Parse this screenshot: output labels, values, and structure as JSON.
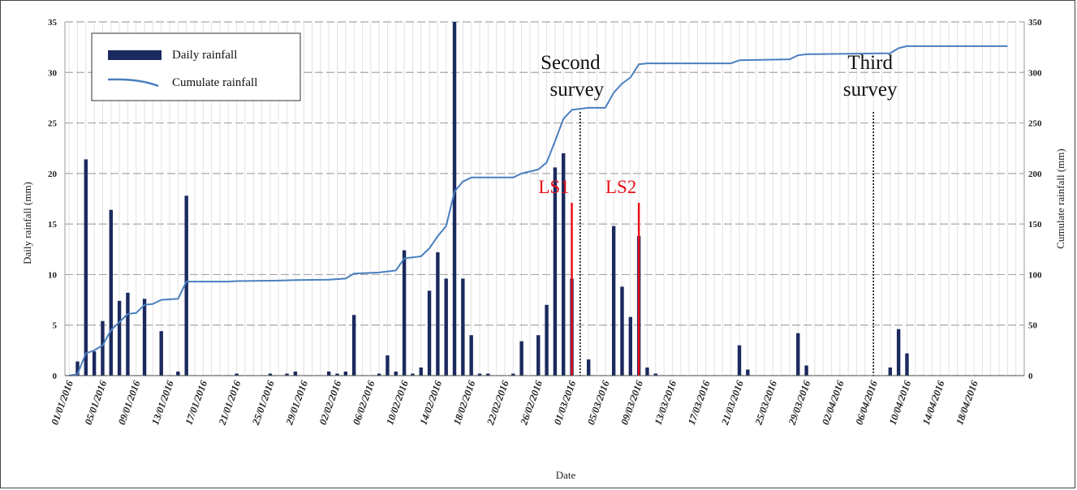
{
  "chart_data": {
    "type": "bar+line",
    "xlabel": "Date",
    "ylabel_left": "Daily rainfall (mm)",
    "ylabel_right": "Cumulate rainfall (mm)",
    "ylim_left": [
      0,
      35
    ],
    "ylim_right": [
      0,
      350
    ],
    "yticks_left": [
      "0",
      "5",
      "10",
      "15",
      "20",
      "25",
      "30",
      "35"
    ],
    "yticks_right": [
      "0",
      "50",
      "100",
      "150",
      "200",
      "250",
      "300",
      "350"
    ],
    "start_date": "2016-01-01",
    "end_date": "2016-04-22",
    "x_tick_labels": [
      "01/01/2016",
      "05/01/2016",
      "09/01/2016",
      "13/01/2016",
      "17/01/2016",
      "21/01/2016",
      "25/01/2016",
      "29/01/2016",
      "02/02/2016",
      "06/02/2016",
      "10/02/2016",
      "14/02/2016",
      "18/02/2016",
      "22/02/2016",
      "26/02/2016",
      "01/03/2016",
      "05/03/2016",
      "09/03/2016",
      "13/03/2016",
      "17/03/2016",
      "21/03/2016",
      "25/03/2016",
      "29/03/2016",
      "02/04/2016",
      "06/04/2016",
      "10/04/2016",
      "14/04/2016",
      "18/04/2016"
    ],
    "grid": true,
    "legend_position": "top-left",
    "series": [
      {
        "name": "Daily rainfall",
        "type": "bar",
        "color": "#1b2a5e",
        "points": [
          [
            "2016-01-02",
            1.4
          ],
          [
            "2016-01-03",
            21.4
          ],
          [
            "2016-01-04",
            2.4
          ],
          [
            "2016-01-05",
            5.4
          ],
          [
            "2016-01-06",
            16.4
          ],
          [
            "2016-01-07",
            7.4
          ],
          [
            "2016-01-08",
            8.2
          ],
          [
            "2016-01-10",
            7.6
          ],
          [
            "2016-01-12",
            4.4
          ],
          [
            "2016-01-14",
            0.4
          ],
          [
            "2016-01-15",
            17.8
          ],
          [
            "2016-01-21",
            0.2
          ],
          [
            "2016-01-25",
            0.2
          ],
          [
            "2016-01-27",
            0.2
          ],
          [
            "2016-01-28",
            0.4
          ],
          [
            "2016-02-01",
            0.4
          ],
          [
            "2016-02-02",
            0.2
          ],
          [
            "2016-02-03",
            0.4
          ],
          [
            "2016-02-04",
            6.0
          ],
          [
            "2016-02-07",
            0.2
          ],
          [
            "2016-02-08",
            2.0
          ],
          [
            "2016-02-09",
            0.4
          ],
          [
            "2016-02-10",
            12.4
          ],
          [
            "2016-02-11",
            0.2
          ],
          [
            "2016-02-12",
            0.8
          ],
          [
            "2016-02-13",
            8.4
          ],
          [
            "2016-02-14",
            12.2
          ],
          [
            "2016-02-15",
            9.6
          ],
          [
            "2016-02-16",
            35.0
          ],
          [
            "2016-02-17",
            9.6
          ],
          [
            "2016-02-18",
            4.0
          ],
          [
            "2016-02-19",
            0.2
          ],
          [
            "2016-02-20",
            0.2
          ],
          [
            "2016-02-23",
            0.2
          ],
          [
            "2016-02-24",
            3.4
          ],
          [
            "2016-02-26",
            4.0
          ],
          [
            "2016-02-27",
            7.0
          ],
          [
            "2016-02-28",
            20.6
          ],
          [
            "2016-02-29",
            22.0
          ],
          [
            "2016-03-01",
            9.6
          ],
          [
            "2016-03-03",
            1.6
          ],
          [
            "2016-03-06",
            14.8
          ],
          [
            "2016-03-07",
            8.8
          ],
          [
            "2016-03-08",
            5.8
          ],
          [
            "2016-03-09",
            13.8
          ],
          [
            "2016-03-10",
            0.8
          ],
          [
            "2016-03-11",
            0.2
          ],
          [
            "2016-03-21",
            3.0
          ],
          [
            "2016-03-22",
            0.6
          ],
          [
            "2016-03-28",
            4.2
          ],
          [
            "2016-03-29",
            1.0
          ],
          [
            "2016-04-08",
            0.8
          ],
          [
            "2016-04-09",
            4.6
          ],
          [
            "2016-04-10",
            2.2
          ]
        ]
      },
      {
        "name": "Cumulate rainfall",
        "type": "line",
        "color": "#4a7fbf",
        "points": [
          [
            "2016-01-01",
            0
          ],
          [
            "2016-01-02",
            1.5
          ],
          [
            "2016-01-03",
            22
          ],
          [
            "2016-01-04",
            25
          ],
          [
            "2016-01-05",
            30
          ],
          [
            "2016-01-06",
            45
          ],
          [
            "2016-01-07",
            53
          ],
          [
            "2016-01-08",
            61
          ],
          [
            "2016-01-09",
            62
          ],
          [
            "2016-01-10",
            70
          ],
          [
            "2016-01-11",
            71
          ],
          [
            "2016-01-12",
            75
          ],
          [
            "2016-01-14",
            76
          ],
          [
            "2016-01-15",
            93
          ],
          [
            "2016-01-20",
            93
          ],
          [
            "2016-01-21",
            93.5
          ],
          [
            "2016-01-26",
            94
          ],
          [
            "2016-01-28",
            94.5
          ],
          [
            "2016-02-01",
            95
          ],
          [
            "2016-02-03",
            96
          ],
          [
            "2016-02-04",
            101
          ],
          [
            "2016-02-07",
            102
          ],
          [
            "2016-02-09",
            104
          ],
          [
            "2016-02-10",
            116
          ],
          [
            "2016-02-12",
            118
          ],
          [
            "2016-02-13",
            126
          ],
          [
            "2016-02-14",
            138
          ],
          [
            "2016-02-15",
            148
          ],
          [
            "2016-02-16",
            182
          ],
          [
            "2016-02-17",
            192
          ],
          [
            "2016-02-18",
            196
          ],
          [
            "2016-02-23",
            196
          ],
          [
            "2016-02-24",
            200
          ],
          [
            "2016-02-26",
            204
          ],
          [
            "2016-02-27",
            211
          ],
          [
            "2016-02-28",
            232
          ],
          [
            "2016-02-29",
            254
          ],
          [
            "2016-03-01",
            263
          ],
          [
            "2016-03-03",
            265
          ],
          [
            "2016-03-05",
            265
          ],
          [
            "2016-03-06",
            280
          ],
          [
            "2016-03-07",
            289
          ],
          [
            "2016-03-08",
            295
          ],
          [
            "2016-03-09",
            308
          ],
          [
            "2016-03-10",
            309
          ],
          [
            "2016-03-20",
            309
          ],
          [
            "2016-03-21",
            312
          ],
          [
            "2016-03-27",
            313
          ],
          [
            "2016-03-28",
            317
          ],
          [
            "2016-03-29",
            318
          ],
          [
            "2016-04-08",
            319
          ],
          [
            "2016-04-09",
            324
          ],
          [
            "2016-04-10",
            326
          ],
          [
            "2016-04-22",
            326
          ]
        ]
      }
    ],
    "annotations": [
      {
        "text": "Second\nsurvey",
        "date": "2016-03-02",
        "style": "dotted",
        "color": "#000000"
      },
      {
        "text": "Third\nsurvey",
        "date": "2016-04-06",
        "style": "dotted",
        "color": "#000000"
      },
      {
        "text": "LS1",
        "date": "2016-03-01",
        "style": "solid",
        "color": "#e8101a"
      },
      {
        "text": "LS2",
        "date": "2016-03-09",
        "style": "solid",
        "color": "#e8101a"
      }
    ]
  }
}
